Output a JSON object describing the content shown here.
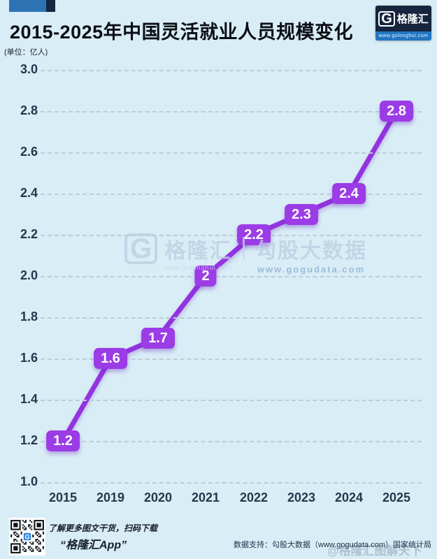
{
  "header": {
    "title": "2015-2025年中国灵活就业人员规模变化",
    "unit_label": "(单位：亿人)",
    "logo": {
      "g": "G",
      "brand": "格隆汇",
      "url": "www.golonghui.com"
    }
  },
  "chart_data": {
    "type": "line",
    "title": "2015-2025年中国灵活就业人员规模变化",
    "ylabel": "(单位：亿人)",
    "categories": [
      "2015",
      "2019",
      "2020",
      "2021",
      "2022",
      "2023",
      "2024",
      "2025"
    ],
    "values": [
      1.2,
      1.6,
      1.7,
      2,
      2.2,
      2.3,
      2.4,
      2.8
    ],
    "point_labels": [
      "1.2",
      "1.6",
      "1.7",
      "2",
      "2.2",
      "2.3",
      "2.4",
      "2.8"
    ],
    "ylim": [
      1.0,
      3.0
    ],
    "yticks": [
      "3.0",
      "2.8",
      "2.6",
      "2.4",
      "2.2",
      "2.0",
      "1.8",
      "1.6",
      "1.4",
      "1.2",
      "1.0"
    ],
    "grid": "horizontal-dashed",
    "legend": "none",
    "line_color": "#9233e0",
    "label_bg_color": "#9b3ce6",
    "label_text_color": "#ffffff",
    "background_color": "#d9edf6"
  },
  "watermark": {
    "g": "G",
    "brand": "格隆汇",
    "brand_url": "www.golonghui.com",
    "divider": "|",
    "partner": "勾股大数据",
    "partner_url": "www.gogudata.com"
  },
  "footer": {
    "qr_caption_line1": "了解更多图文干货，扫码下载",
    "qr_caption_line2": "“格隆汇App”",
    "data_support": "数据支持：勾股大数据（www.gogudata.com）国家统计局",
    "stamp": "@格隆汇图解天下"
  }
}
